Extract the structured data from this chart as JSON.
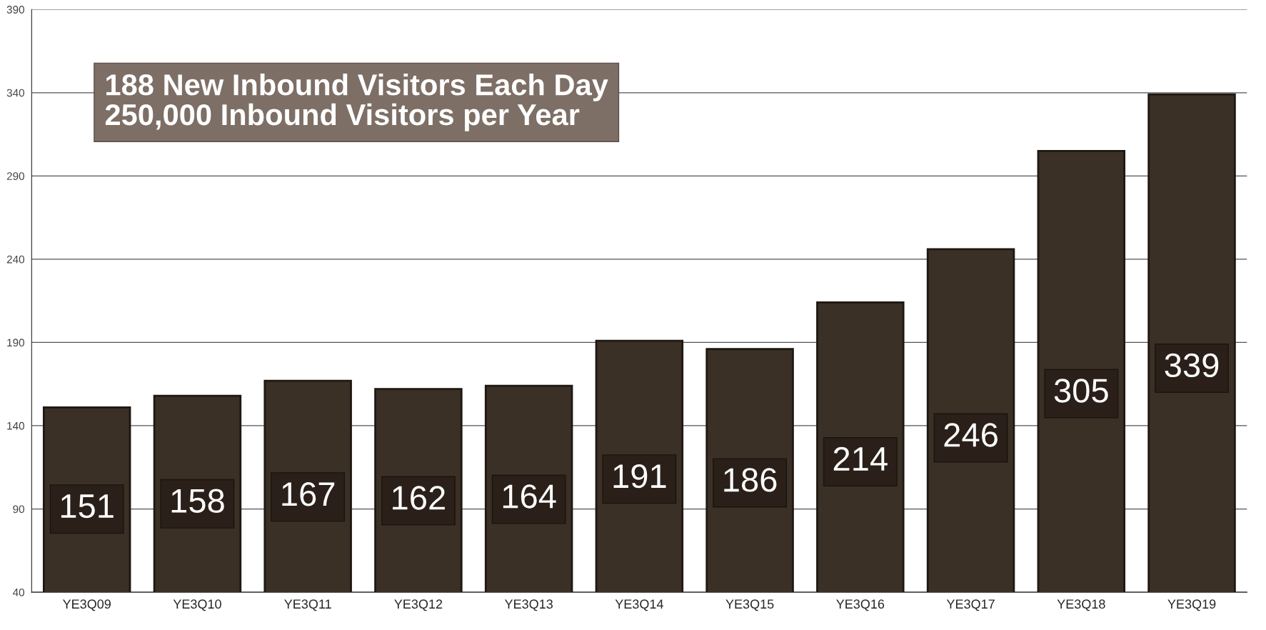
{
  "chart_data": {
    "type": "bar",
    "title": "188 New Inbound Visitors Each Day\n250,000 Inbound Visitors per Year",
    "categories": [
      "YE3Q09",
      "YE3Q10",
      "YE3Q11",
      "YE3Q12",
      "YE3Q13",
      "YE3Q14",
      "YE3Q15",
      "YE3Q16",
      "YE3Q17",
      "YE3Q18",
      "YE3Q19"
    ],
    "values": [
      151,
      158,
      167,
      162,
      164,
      191,
      186,
      214,
      246,
      305,
      339
    ],
    "color": "#3b3026",
    "ylim": [
      40,
      390
    ],
    "yticks": [
      40,
      90,
      140,
      190,
      240,
      290,
      340,
      390
    ],
    "grid": "y",
    "data_labels": true,
    "legend": false
  }
}
